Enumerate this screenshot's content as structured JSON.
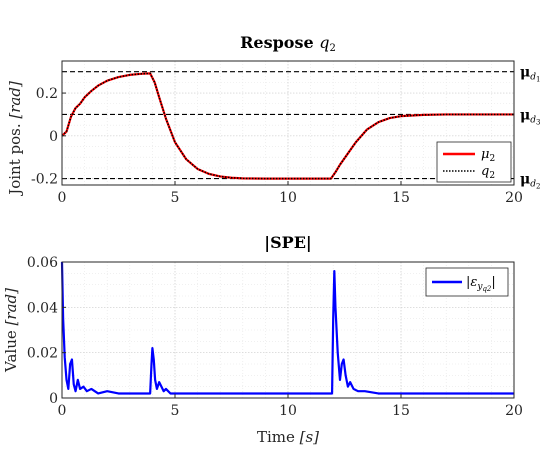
{
  "chart_data": [
    {
      "type": "line",
      "title_main": "Respose ",
      "title_var": "q",
      "title_sub": "2",
      "ylabel_main": "Joint pos. ",
      "ylabel_unit": "[rad]",
      "xlabel": "",
      "xlim": [
        0,
        20
      ],
      "ylim": [
        -0.23,
        0.35
      ],
      "xticks": [
        0,
        5,
        10,
        15,
        20
      ],
      "yticks": [
        0.2,
        0,
        -0.2
      ],
      "ytick_labels": [
        "0.2",
        "0",
        "-0.2"
      ],
      "grid": true,
      "legend_position": "bottom-right",
      "reference_lines": [
        {
          "y": 0.3,
          "label": "μ",
          "sub": "d1",
          "label_sub_main": "d",
          "label_sub_index": "1"
        },
        {
          "y": 0.1,
          "label": "μ",
          "sub": "d3",
          "label_sub_main": "d",
          "label_sub_index": "3"
        },
        {
          "y": -0.2,
          "label": "μ",
          "sub": "d2",
          "label_sub_main": "d",
          "label_sub_index": "2"
        }
      ],
      "series": [
        {
          "name": "μ2",
          "name_main": "μ",
          "name_sub": "2",
          "color": "#ff0000",
          "style": "solid",
          "x": [
            0,
            0.2,
            0.4,
            0.6,
            0.8,
            1.0,
            1.3,
            1.6,
            2.0,
            2.5,
            3.0,
            3.5,
            3.9,
            4.1,
            4.3,
            4.6,
            5.0,
            5.5,
            6.0,
            6.5,
            7.0,
            7.5,
            8.0,
            9.0,
            10.0,
            11.0,
            11.9,
            12.1,
            12.3,
            12.6,
            13.0,
            13.5,
            14.0,
            14.5,
            15.0,
            16.0,
            17.0,
            18.0,
            19.0,
            20.0
          ],
          "y": [
            0.0,
            0.02,
            0.09,
            0.13,
            0.15,
            0.18,
            0.21,
            0.235,
            0.258,
            0.275,
            0.285,
            0.29,
            0.292,
            0.25,
            0.18,
            0.08,
            -0.03,
            -0.11,
            -0.155,
            -0.178,
            -0.19,
            -0.196,
            -0.199,
            -0.2,
            -0.2,
            -0.2,
            -0.2,
            -0.17,
            -0.135,
            -0.09,
            -0.03,
            0.03,
            0.064,
            0.083,
            0.092,
            0.098,
            0.1,
            0.1,
            0.1,
            0.1
          ]
        },
        {
          "name": "q2",
          "name_main": "q",
          "name_sub": "2",
          "color": "#000000",
          "style": "dotted",
          "x": [
            0,
            0.2,
            0.4,
            0.6,
            0.8,
            1.0,
            1.3,
            1.6,
            2.0,
            2.5,
            3.0,
            3.5,
            3.9,
            4.1,
            4.3,
            4.6,
            5.0,
            5.5,
            6.0,
            6.5,
            7.0,
            7.5,
            8.0,
            9.0,
            10.0,
            11.0,
            11.9,
            12.1,
            12.3,
            12.6,
            13.0,
            13.5,
            14.0,
            14.5,
            15.0,
            16.0,
            17.0,
            18.0,
            19.0,
            20.0
          ],
          "y": [
            0.0,
            0.02,
            0.09,
            0.13,
            0.15,
            0.18,
            0.21,
            0.235,
            0.258,
            0.275,
            0.285,
            0.29,
            0.292,
            0.25,
            0.18,
            0.08,
            -0.03,
            -0.11,
            -0.155,
            -0.178,
            -0.19,
            -0.196,
            -0.199,
            -0.2,
            -0.2,
            -0.2,
            -0.2,
            -0.17,
            -0.135,
            -0.09,
            -0.03,
            0.03,
            0.064,
            0.083,
            0.092,
            0.098,
            0.1,
            0.1,
            0.1,
            0.1
          ]
        }
      ]
    },
    {
      "type": "line",
      "title": "|SPE|",
      "xlabel_main": "Time ",
      "xlabel_unit": "[s]",
      "ylabel_main": "Value ",
      "ylabel_unit": "[rad]",
      "xlim": [
        0,
        20
      ],
      "ylim": [
        0,
        0.06
      ],
      "xticks": [
        0,
        5,
        10,
        15,
        20
      ],
      "yticks": [
        0,
        0.02,
        0.04,
        0.06
      ],
      "ytick_labels": [
        "0",
        "0.02",
        "0.04",
        "0.06"
      ],
      "grid": true,
      "legend_position": "top-right",
      "series": [
        {
          "name": "|εyq2|",
          "name_main": "|ε",
          "name_sub": "y",
          "name_subsub": "q2",
          "name_end": "|",
          "color": "#0000ff",
          "style": "solid",
          "x": [
            0,
            0.05,
            0.12,
            0.2,
            0.28,
            0.36,
            0.44,
            0.52,
            0.6,
            0.7,
            0.8,
            0.95,
            1.1,
            1.3,
            1.6,
            2.0,
            2.5,
            3.0,
            3.5,
            3.9,
            3.96,
            4.0,
            4.06,
            4.12,
            4.2,
            4.3,
            4.4,
            4.5,
            4.6,
            4.8,
            5.0,
            6.0,
            7.0,
            8.0,
            9.0,
            10.0,
            11.0,
            11.95,
            12.0,
            12.05,
            12.1,
            12.2,
            12.3,
            12.38,
            12.46,
            12.55,
            12.65,
            12.75,
            12.9,
            13.1,
            13.4,
            14.0,
            15.0,
            16.0,
            17.0,
            18.0,
            19.0,
            20.0
          ],
          "y": [
            0.06,
            0.035,
            0.018,
            0.008,
            0.004,
            0.015,
            0.017,
            0.006,
            0.003,
            0.008,
            0.004,
            0.005,
            0.003,
            0.004,
            0.002,
            0.003,
            0.002,
            0.002,
            0.002,
            0.002,
            0.015,
            0.022,
            0.017,
            0.008,
            0.004,
            0.007,
            0.005,
            0.003,
            0.004,
            0.002,
            0.002,
            0.002,
            0.002,
            0.002,
            0.002,
            0.002,
            0.002,
            0.002,
            0.035,
            0.056,
            0.04,
            0.02,
            0.008,
            0.015,
            0.017,
            0.01,
            0.005,
            0.007,
            0.004,
            0.003,
            0.003,
            0.002,
            0.002,
            0.002,
            0.002,
            0.002,
            0.002,
            0.002
          ]
        }
      ]
    }
  ]
}
